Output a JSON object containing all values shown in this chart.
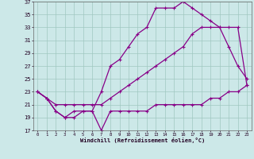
{
  "xlabel": "Windchill (Refroidissement éolien,°C)",
  "background_color": "#cce8e8",
  "grid_color": "#a0c8c0",
  "line_color": "#880088",
  "xlim": [
    -0.5,
    23.5
  ],
  "ylim": [
    17,
    37
  ],
  "xticks": [
    0,
    1,
    2,
    3,
    4,
    5,
    6,
    7,
    8,
    9,
    10,
    11,
    12,
    13,
    14,
    15,
    16,
    17,
    18,
    19,
    20,
    21,
    22,
    23
  ],
  "yticks": [
    17,
    19,
    21,
    23,
    25,
    27,
    29,
    31,
    33,
    35,
    37
  ],
  "line1_x": [
    0,
    1,
    2,
    3,
    4,
    5,
    6,
    7,
    8,
    9,
    10,
    11,
    12,
    13,
    14,
    15,
    16,
    17,
    18,
    19,
    20,
    21,
    22,
    23
  ],
  "line1_y": [
    23,
    22,
    20,
    19,
    19,
    20,
    20,
    17,
    20,
    20,
    20,
    20,
    20,
    21,
    21,
    21,
    21,
    21,
    21,
    22,
    22,
    23,
    23,
    24
  ],
  "line2_x": [
    0,
    1,
    2,
    3,
    4,
    5,
    6,
    7,
    8,
    9,
    10,
    11,
    12,
    13,
    14,
    15,
    16,
    17,
    18,
    19,
    20,
    21,
    22,
    23
  ],
  "line2_y": [
    23,
    22,
    20,
    19,
    20,
    20,
    20,
    23,
    27,
    28,
    30,
    32,
    33,
    36,
    36,
    36,
    37,
    36,
    35,
    34,
    33,
    30,
    27,
    25
  ],
  "line3_x": [
    0,
    1,
    2,
    3,
    4,
    5,
    6,
    7,
    8,
    9,
    10,
    11,
    12,
    13,
    14,
    15,
    16,
    17,
    18,
    19,
    20,
    21,
    22,
    23
  ],
  "line3_y": [
    23,
    22,
    21,
    21,
    21,
    21,
    21,
    21,
    22,
    23,
    24,
    25,
    26,
    27,
    28,
    29,
    30,
    32,
    33,
    33,
    33,
    33,
    33,
    24
  ]
}
